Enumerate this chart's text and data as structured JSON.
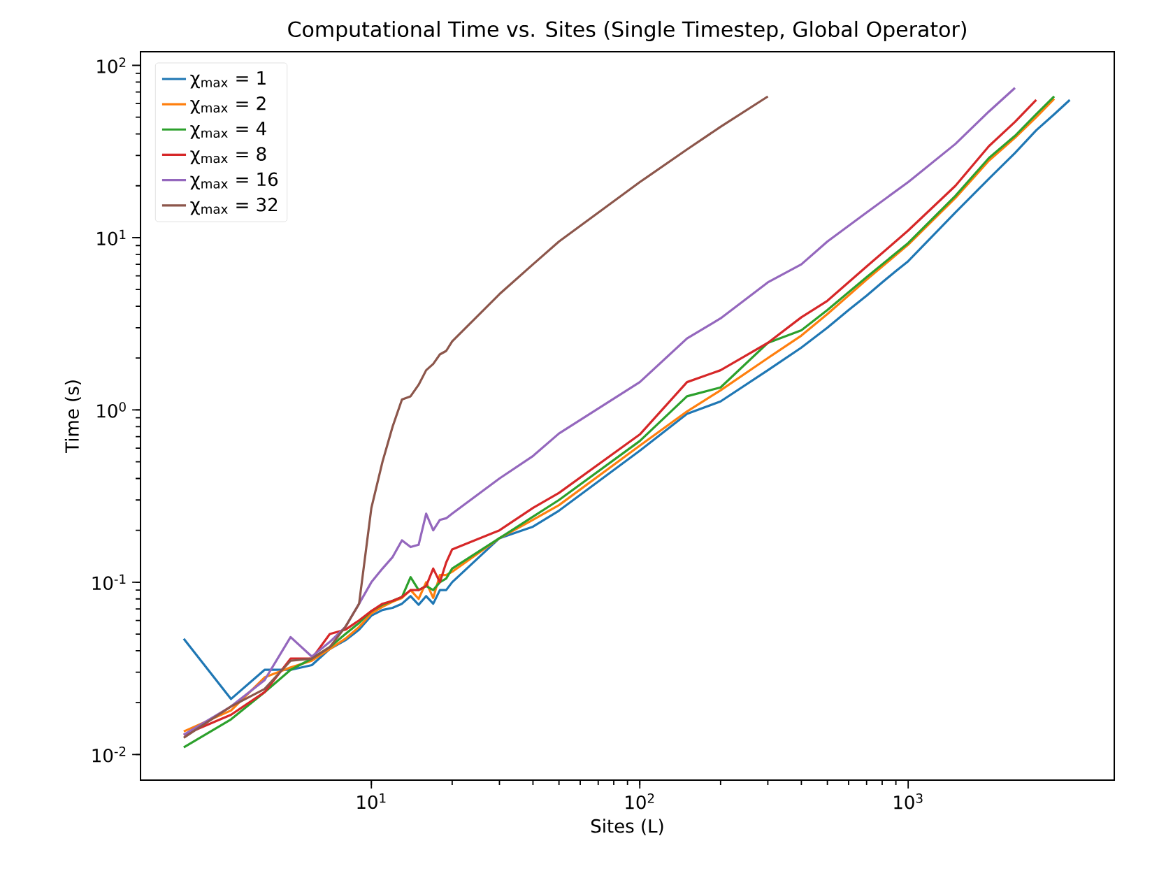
{
  "chart_data": {
    "type": "line",
    "title": "Computational Time vs. Sites (Single Timestep, Global Operator)",
    "xlabel": "Sites (L)",
    "ylabel": "Time (s)",
    "log": "xy",
    "grid": false,
    "legend": "top left",
    "marker": "none",
    "line_style": "solid",
    "xlim": [
      1.38,
      5860
    ],
    "ylim": [
      0.0071,
      120
    ],
    "xticks": [
      {
        "value": 10,
        "label": "10$^{1}$"
      },
      {
        "value": 100,
        "label": "10$^{2}$"
      },
      {
        "value": 1000,
        "label": "10$^{3}$"
      }
    ],
    "yticks": [
      {
        "value": 0.01,
        "label": "10$^{-2}$"
      },
      {
        "value": 0.1,
        "label": "10$^{-1}$"
      },
      {
        "value": 1,
        "label": "10$^{0}$"
      },
      {
        "value": 10,
        "label": "10$^{1}$"
      },
      {
        "value": 100,
        "label": "10$^{2}$"
      }
    ],
    "series": [
      {
        "name": "χ$_{max}$ = 1",
        "color": "#1f77b4",
        "x": [
          2,
          3,
          4,
          5,
          6,
          7,
          8,
          9,
          10,
          11,
          12,
          13,
          14,
          15,
          16,
          17,
          18,
          19,
          20,
          30,
          40,
          50,
          100,
          150,
          200,
          300,
          400,
          500,
          600,
          700,
          800,
          900,
          1000,
          1500,
          2000,
          2500,
          3000,
          3500,
          4000
        ],
        "values": [
          0.047,
          0.021,
          0.031,
          0.031,
          0.033,
          0.041,
          0.046,
          0.053,
          0.064,
          0.069,
          0.071,
          0.075,
          0.083,
          0.074,
          0.083,
          0.075,
          0.09,
          0.09,
          0.1,
          0.18,
          0.21,
          0.26,
          0.58,
          0.95,
          1.12,
          1.7,
          2.3,
          3.0,
          3.8,
          4.6,
          5.5,
          6.4,
          7.3,
          14,
          22,
          31,
          42,
          52,
          63
        ]
      },
      {
        "name": "χ$_{max}$ = 2",
        "color": "#ff7f0e",
        "x": [
          2,
          3,
          4,
          5,
          6,
          7,
          8,
          9,
          10,
          11,
          12,
          13,
          14,
          15,
          16,
          17,
          18,
          19,
          20,
          30,
          40,
          50,
          100,
          150,
          200,
          300,
          400,
          500,
          700,
          1000,
          1500,
          2000,
          2500,
          3000,
          3500
        ],
        "values": [
          0.0136,
          0.018,
          0.028,
          0.032,
          0.035,
          0.041,
          0.047,
          0.055,
          0.066,
          0.072,
          0.077,
          0.081,
          0.09,
          0.08,
          0.1,
          0.081,
          0.11,
          0.11,
          0.115,
          0.18,
          0.23,
          0.28,
          0.62,
          0.98,
          1.3,
          2.0,
          2.7,
          3.6,
          5.7,
          9.1,
          17,
          28,
          38,
          50,
          64
        ]
      },
      {
        "name": "χ$_{max}$ = 4",
        "color": "#2ca02c",
        "x": [
          2,
          3,
          4,
          5,
          6,
          7,
          8,
          9,
          10,
          11,
          12,
          13,
          14,
          15,
          16,
          17,
          18,
          19,
          20,
          30,
          40,
          50,
          100,
          150,
          200,
          300,
          400,
          500,
          700,
          1000,
          1500,
          2000,
          2500,
          3000,
          3500
        ],
        "values": [
          0.011,
          0.016,
          0.023,
          0.031,
          0.036,
          0.042,
          0.05,
          0.058,
          0.068,
          0.074,
          0.078,
          0.082,
          0.107,
          0.09,
          0.095,
          0.09,
          0.1,
          0.105,
          0.12,
          0.18,
          0.24,
          0.3,
          0.66,
          1.2,
          1.35,
          2.45,
          2.9,
          3.8,
          5.9,
          9.3,
          17.5,
          29,
          39,
          52,
          66
        ]
      },
      {
        "name": "χ$_{max}$ = 8",
        "color": "#d62728",
        "x": [
          2,
          3,
          4,
          5,
          6,
          7,
          8,
          9,
          10,
          11,
          12,
          13,
          14,
          15,
          16,
          17,
          18,
          19,
          20,
          30,
          40,
          50,
          100,
          150,
          200,
          300,
          400,
          500,
          700,
          1000,
          1500,
          2000,
          2500,
          3000
        ],
        "values": [
          0.013,
          0.017,
          0.023,
          0.036,
          0.036,
          0.05,
          0.053,
          0.06,
          0.068,
          0.075,
          0.078,
          0.082,
          0.09,
          0.09,
          0.095,
          0.12,
          0.1,
          0.13,
          0.155,
          0.2,
          0.27,
          0.33,
          0.72,
          1.45,
          1.7,
          2.45,
          3.45,
          4.3,
          6.8,
          11,
          20,
          34,
          47,
          63
        ]
      },
      {
        "name": "χ$_{max}$ = 16",
        "color": "#9467bd",
        "x": [
          2,
          3,
          4,
          5,
          6,
          7,
          8,
          9,
          10,
          11,
          12,
          13,
          14,
          15,
          16,
          17,
          18,
          19,
          20,
          30,
          40,
          50,
          100,
          150,
          200,
          300,
          400,
          500,
          700,
          1000,
          1500,
          2000,
          2500
        ],
        "values": [
          0.013,
          0.019,
          0.027,
          0.048,
          0.037,
          0.045,
          0.055,
          0.075,
          0.1,
          0.12,
          0.14,
          0.175,
          0.16,
          0.165,
          0.25,
          0.2,
          0.23,
          0.235,
          0.25,
          0.4,
          0.54,
          0.73,
          1.45,
          2.6,
          3.4,
          5.5,
          7.0,
          9.5,
          14,
          21,
          35,
          54,
          74
        ]
      },
      {
        "name": "χ$_{max}$ = 32",
        "color": "#8c564b",
        "x": [
          2,
          3,
          4,
          5,
          6,
          7,
          8,
          9,
          10,
          11,
          12,
          13,
          14,
          15,
          16,
          17,
          18,
          19,
          20,
          30,
          40,
          50,
          100,
          150,
          200,
          300
        ],
        "values": [
          0.0125,
          0.019,
          0.024,
          0.035,
          0.036,
          0.042,
          0.055,
          0.075,
          0.27,
          0.5,
          0.8,
          1.15,
          1.2,
          1.4,
          1.7,
          1.85,
          2.1,
          2.2,
          2.5,
          4.7,
          7.0,
          9.5,
          21,
          32.5,
          44,
          66
        ]
      }
    ]
  }
}
